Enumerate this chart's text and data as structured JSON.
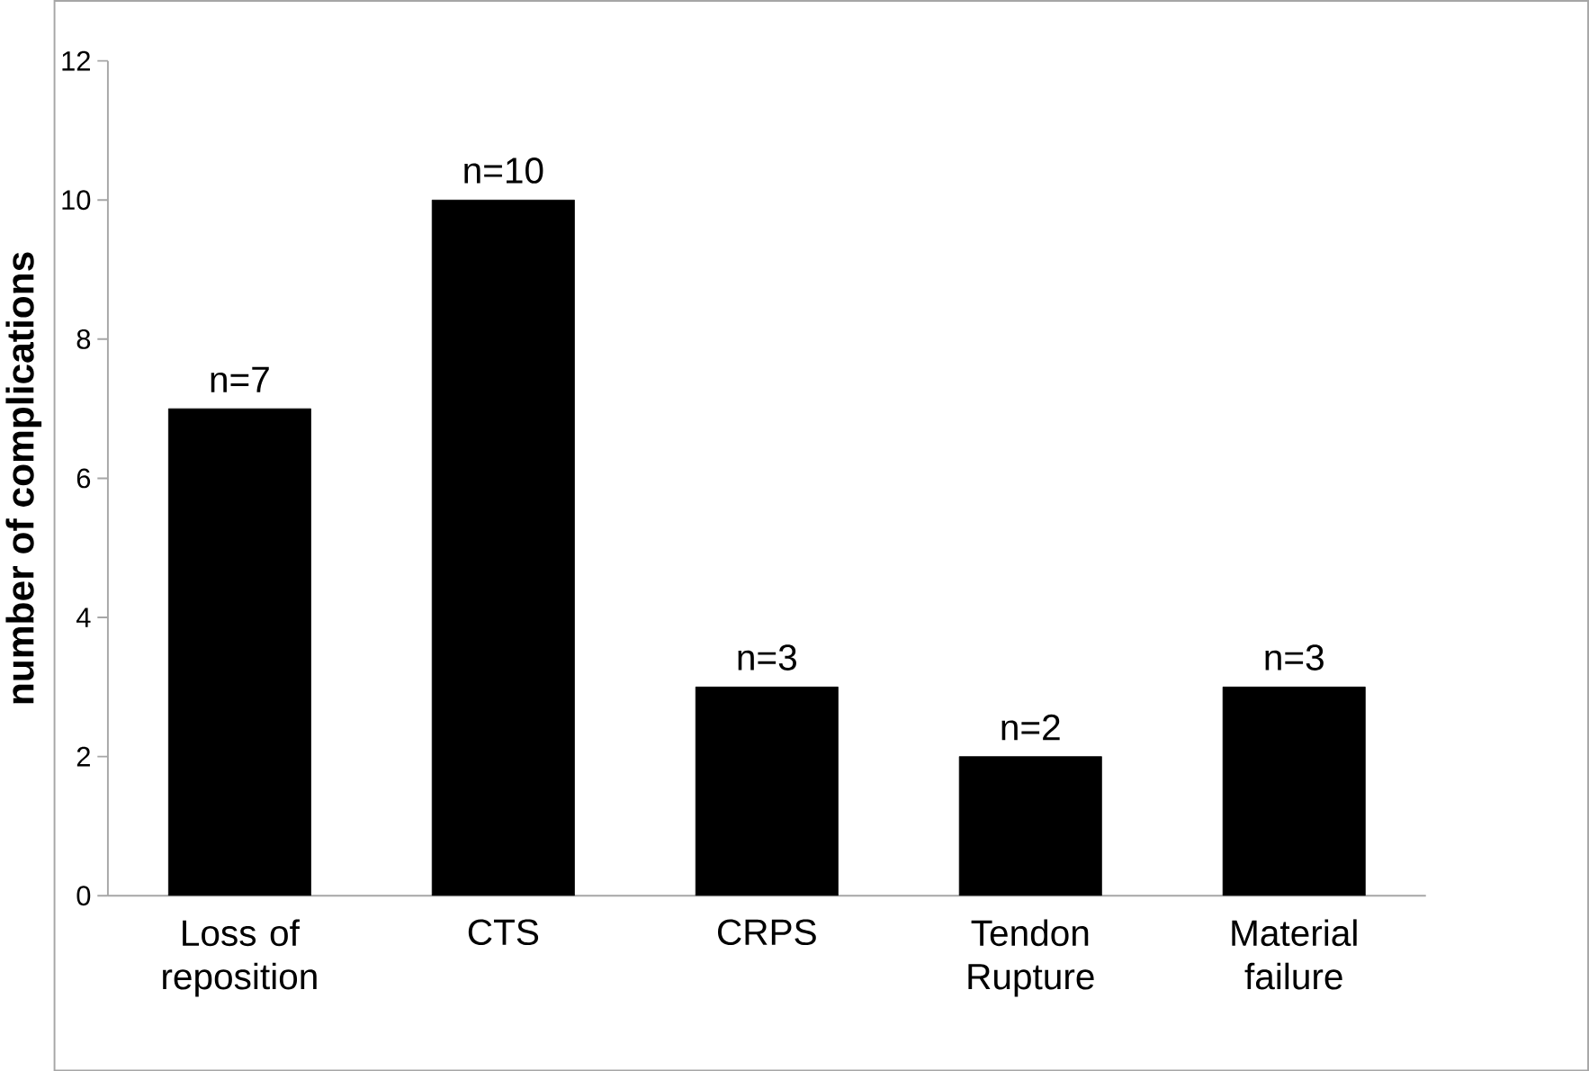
{
  "chart_data": {
    "type": "bar",
    "ylabel": "number of complications",
    "categories": [
      "Loss of reposition",
      "CTS",
      "CRPS",
      "Tendon Rupture",
      "Material failure"
    ],
    "values": [
      7,
      10,
      3,
      2,
      3
    ],
    "value_labels": [
      "n=7",
      "n=10",
      "n=3",
      "n=2",
      "n=3"
    ],
    "color": "#000000",
    "ylim": [
      0,
      12
    ],
    "yticks": [
      0,
      2,
      4,
      6,
      8,
      10,
      12
    ],
    "grid": false
  }
}
